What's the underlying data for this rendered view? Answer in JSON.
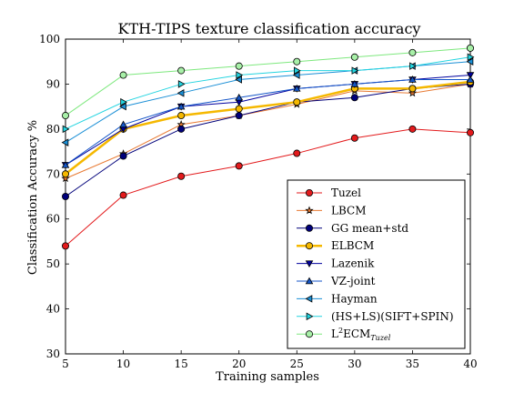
{
  "chart_data": {
    "type": "line",
    "title": "KTH-TIPS texture classification accuracy",
    "xlabel": "Training samples",
    "ylabel": "Classification Accuracy %",
    "x": [
      5,
      10,
      15,
      20,
      25,
      30,
      35,
      40
    ],
    "xlim": [
      5,
      40
    ],
    "ylim": [
      30,
      100
    ],
    "xticks": [
      "5",
      "10",
      "15",
      "20",
      "25",
      "30",
      "35",
      "40"
    ],
    "yticks": [
      "30",
      "40",
      "50",
      "60",
      "70",
      "80",
      "90",
      "100"
    ],
    "grid": false,
    "legend_position": "lower-right",
    "series": [
      {
        "name": "Tuzel",
        "name_main": "Tuzel",
        "name_sup": "",
        "name_sub": "",
        "color": "#e31a1c",
        "marker": "circle",
        "marker_fill": "#e31a1c",
        "line_width": 1,
        "values": [
          54,
          65.3,
          69.5,
          71.8,
          74.6,
          78,
          80,
          79.2
        ]
      },
      {
        "name": "LBCM",
        "name_main": "LBCM",
        "name_sup": "",
        "name_sub": "",
        "color": "#e87a33",
        "marker": "star",
        "marker_fill": "#e87a33",
        "line_width": 1,
        "values": [
          69,
          74.5,
          81,
          83,
          85.5,
          88.5,
          88,
          90
        ]
      },
      {
        "name": "GG mean+std",
        "name_main": "GG mean+std",
        "name_sup": "",
        "name_sub": "",
        "color": "#00007a",
        "marker": "circle",
        "marker_fill": "#00007a",
        "line_width": 1,
        "values": [
          65,
          74,
          80,
          83,
          86,
          87,
          89,
          90
        ]
      },
      {
        "name": "ELBCM",
        "name_main": "ELBCM",
        "name_sup": "",
        "name_sub": "",
        "color": "#f5b800",
        "marker": "circle",
        "marker_fill": "#f5b800",
        "line_width": 2.5,
        "values": [
          70,
          80,
          83,
          84.5,
          86,
          89,
          89,
          90.5
        ]
      },
      {
        "name": "Lazenik",
        "name_main": "Lazenik",
        "name_sup": "",
        "name_sub": "",
        "color": "#00009e",
        "marker": "triangle-down",
        "marker_fill": "#00009e",
        "line_width": 1,
        "values": [
          72,
          80,
          85,
          86,
          89,
          90,
          91,
          92
        ]
      },
      {
        "name": "VZ-joint",
        "name_main": "VZ-joint",
        "name_sup": "",
        "name_sub": "",
        "color": "#1456c8",
        "marker": "triangle-up",
        "marker_fill": "#1456c8",
        "line_width": 1,
        "values": [
          72,
          81,
          85,
          87,
          89,
          90,
          91,
          91
        ]
      },
      {
        "name": "Hayman",
        "name_main": "Hayman",
        "name_sup": "",
        "name_sub": "",
        "color": "#1a8fd6",
        "marker": "triangle-left",
        "marker_fill": "#1a8fd6",
        "line_width": 1,
        "values": [
          77,
          85,
          88,
          91,
          92,
          93,
          94,
          95
        ]
      },
      {
        "name": "(HS+LS)(SIFT+SPIN)",
        "name_main": "(HS+LS)(SIFT+SPIN)",
        "name_sup": "",
        "name_sub": "",
        "color": "#22d4e0",
        "marker": "triangle-right",
        "marker_fill": "#22d4e0",
        "line_width": 1,
        "values": [
          80,
          86,
          90,
          92,
          93,
          93,
          94,
          96
        ]
      },
      {
        "name": "L2ECMTuzel",
        "name_main": "L",
        "name_sup": "2",
        "name_main2": "ECM",
        "name_sub": "Tuzel",
        "color": "#7ee87e",
        "marker": "circle",
        "marker_fill": "#a8f0a8",
        "line_width": 1,
        "values": [
          83,
          92,
          93,
          94,
          95,
          96,
          97,
          98
        ]
      }
    ]
  }
}
